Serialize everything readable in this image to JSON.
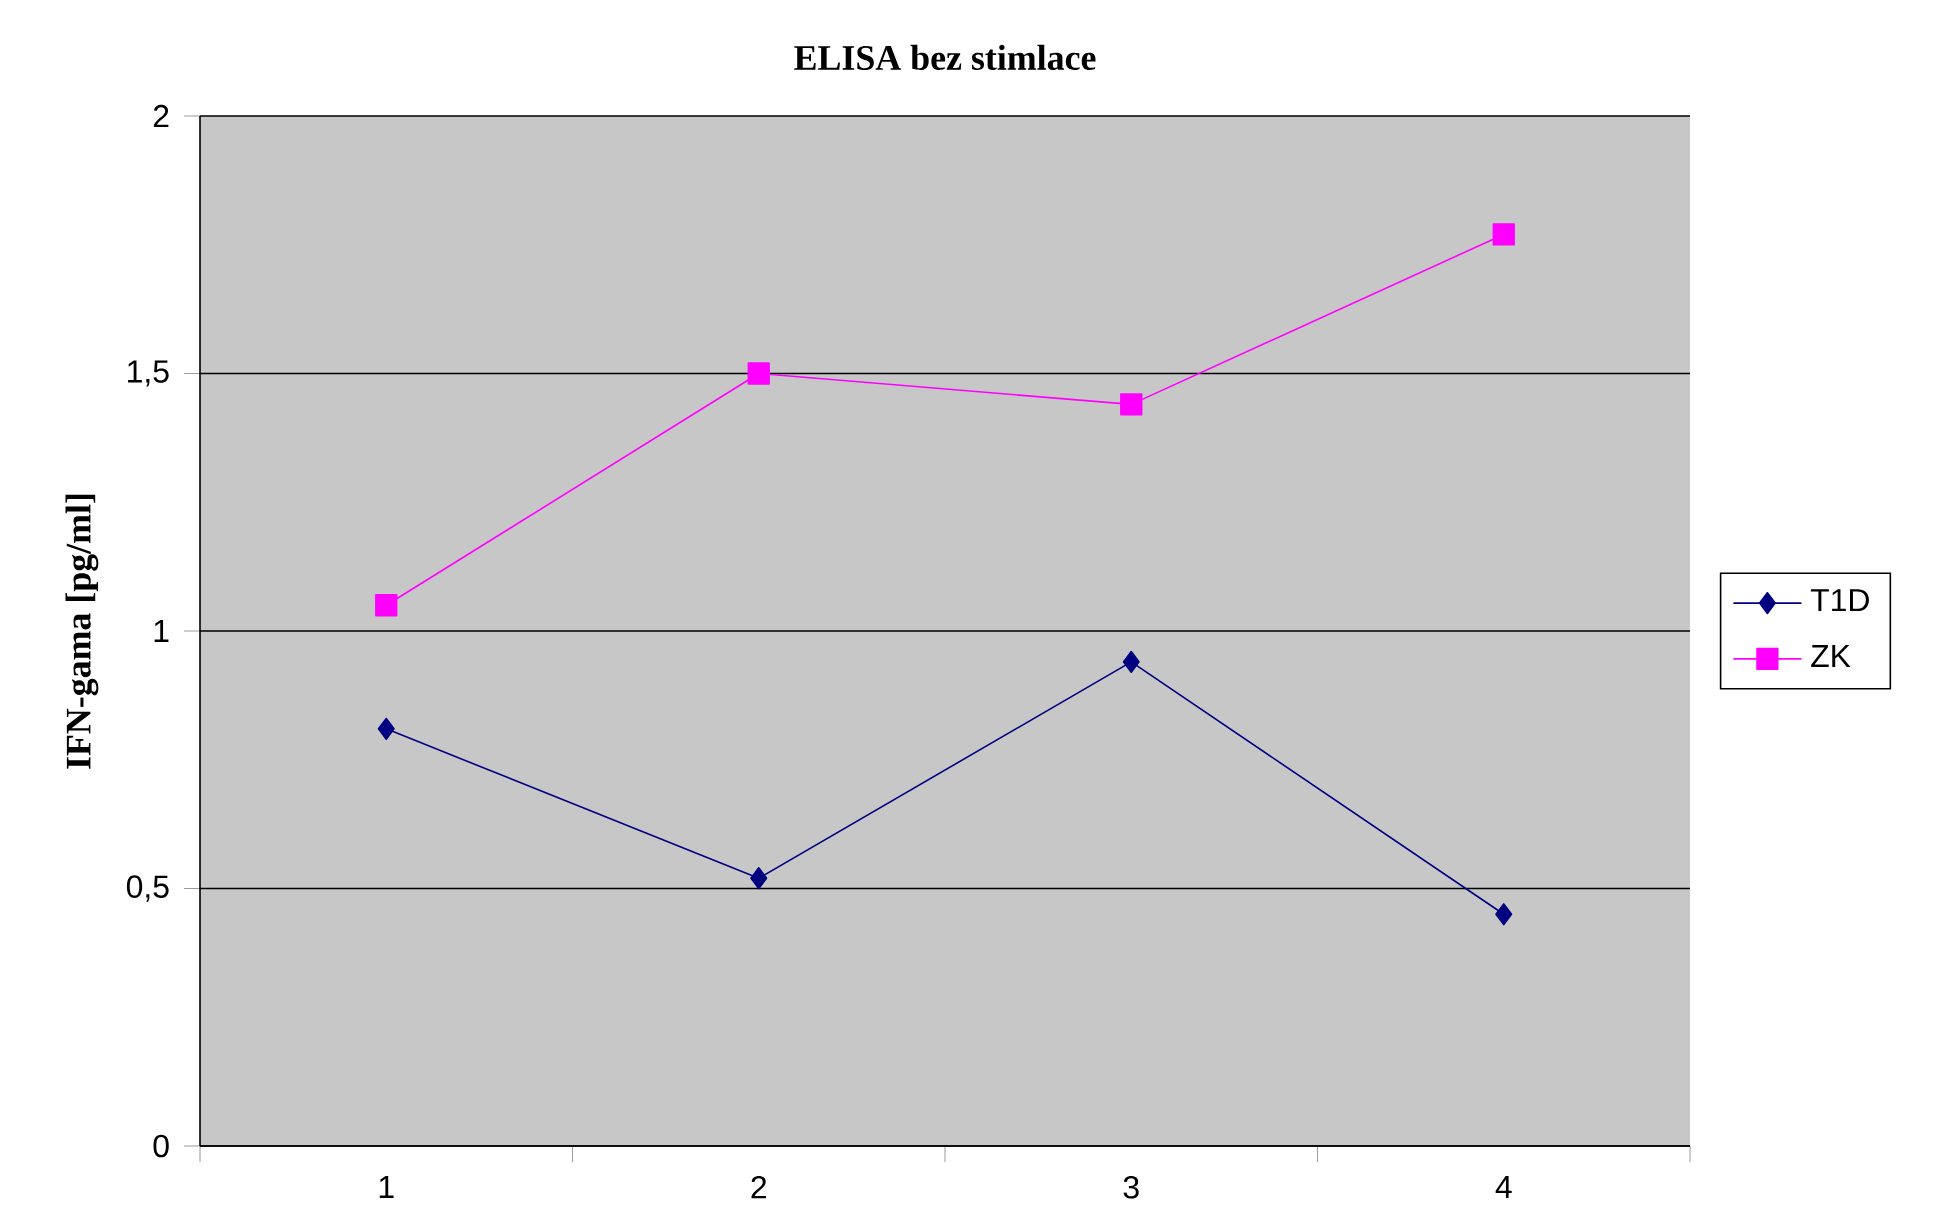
{
  "chart_data": {
    "type": "line",
    "title": "ELISA bez stimlace",
    "ylabel": "IFN-gama [pg/ml]",
    "categories": [
      "1",
      "2",
      "3",
      "4"
    ],
    "series": [
      {
        "name": "T1D",
        "color": "#000080",
        "marker": "diamond",
        "values": [
          0.81,
          0.52,
          0.94,
          0.45
        ]
      },
      {
        "name": "ZK",
        "color": "#ff00ff",
        "marker": "square",
        "values": [
          1.05,
          1.5,
          1.44,
          1.77
        ]
      }
    ],
    "ylim": [
      0,
      2
    ],
    "yticks": [
      0,
      {
        "value": 0.5,
        "label": "0,5"
      },
      1,
      {
        "value": 1.5,
        "label": "1,5"
      },
      2
    ],
    "grid": "y",
    "legend": "right",
    "line_style": "solid"
  }
}
